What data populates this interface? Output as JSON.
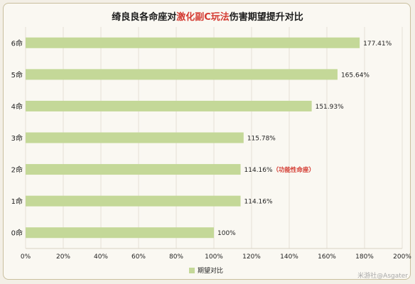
{
  "title": {
    "before": "绮良良各命座对",
    "highlight": "激化副C玩法",
    "after": "伤害期望提升对比"
  },
  "colors": {
    "bar": "#c4d898",
    "highlight": "#d43b32",
    "grid": "#e6e1d6",
    "text": "#222222"
  },
  "watermark": "米游社@Asgater",
  "chart_data": {
    "type": "bar",
    "orientation": "horizontal",
    "categories": [
      "6命",
      "5命",
      "4命",
      "3命",
      "2命",
      "1命",
      "0命"
    ],
    "series": [
      {
        "name": "期望对比",
        "values": [
          177.41,
          165.64,
          151.93,
          115.78,
          114.16,
          114.16,
          100
        ]
      }
    ],
    "value_labels": [
      "177.41%",
      "165.64%",
      "151.93%",
      "115.78%",
      "114.16%",
      "114.16%",
      "100%"
    ],
    "annotations": [
      {
        "category": "2命",
        "text": "（功能性命座）"
      }
    ],
    "xlim": [
      0,
      200
    ],
    "xticks": [
      0,
      20,
      40,
      60,
      80,
      100,
      120,
      140,
      160,
      180,
      200
    ],
    "xtick_labels": [
      "0%",
      "20%",
      "40%",
      "60%",
      "80%",
      "100%",
      "120%",
      "140%",
      "160%",
      "180%",
      "200%"
    ],
    "grid": true,
    "legend": "bottom-center"
  }
}
